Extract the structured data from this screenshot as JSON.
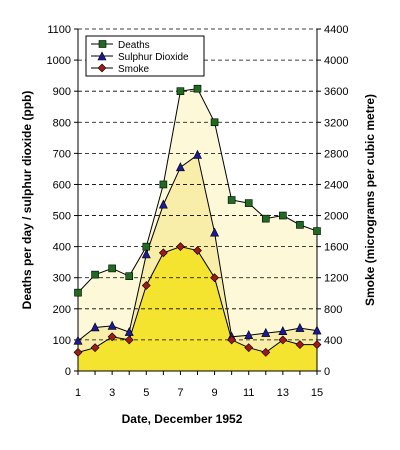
{
  "chart_data": {
    "type": "line",
    "xlabel": "Date, December 1952",
    "ylabel_left": "Deaths per day / sulphur dioxide (ppb)",
    "ylabel_right": "Smoke (micrograms per cubic metre)",
    "x": [
      1,
      2,
      3,
      4,
      5,
      6,
      7,
      8,
      9,
      10,
      11,
      12,
      13,
      14,
      15
    ],
    "x_range": [
      1,
      15
    ],
    "ylim_left": [
      0,
      1100
    ],
    "ylim_right": [
      0,
      4400
    ],
    "left_ticks": [
      0,
      100,
      200,
      300,
      400,
      500,
      600,
      700,
      800,
      900,
      1000,
      1100
    ],
    "right_ticks": [
      0,
      400,
      800,
      1200,
      1600,
      2000,
      2400,
      2800,
      3200,
      3600,
      4000,
      4400
    ],
    "grid": "horizontal dashed",
    "legend_position": "top-left",
    "series": [
      {
        "name": "Deaths",
        "axis": "left",
        "color": "#1f6b1f",
        "marker": "square",
        "values": [
          252,
          310,
          330,
          305,
          400,
          600,
          900,
          908,
          800,
          550,
          540,
          490,
          500,
          470,
          450
        ]
      },
      {
        "name": "Sulphur Dioxide",
        "axis": "left",
        "color": "#1a1a99",
        "marker": "triangle",
        "values": [
          97,
          140,
          145,
          125,
          375,
          535,
          655,
          695,
          445,
          110,
          115,
          122,
          128,
          138,
          130
        ]
      },
      {
        "name": "Smoke",
        "axis": "right",
        "color": "#a01818",
        "marker": "diamond",
        "values": [
          240,
          300,
          440,
          400,
          1100,
          1520,
          1600,
          1550,
          1200,
          400,
          300,
          240,
          400,
          340,
          340
        ]
      }
    ]
  },
  "colors": {
    "deaths_fill": "#fcf8d8",
    "so2_fill": "#f8eeaa",
    "smoke_fill": "#f4e430",
    "line": "#000000",
    "grid": "#000000"
  }
}
